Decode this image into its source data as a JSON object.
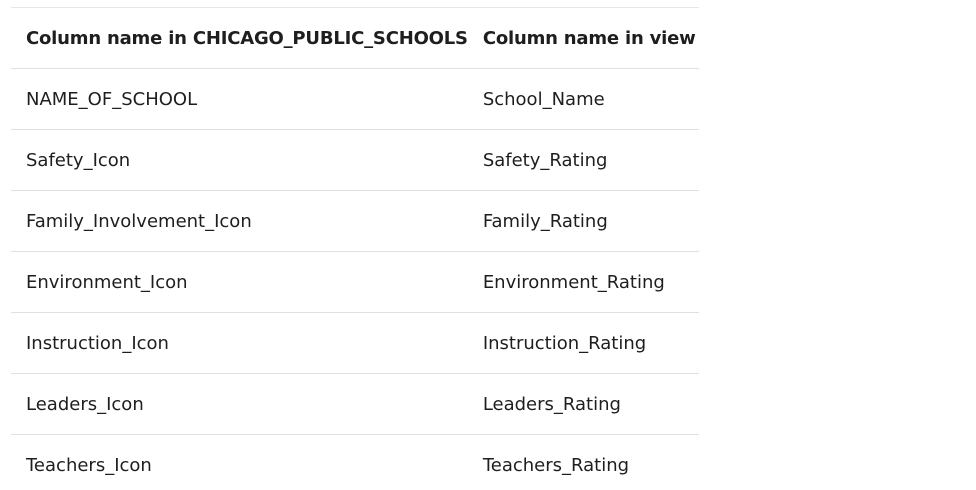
{
  "table": {
    "headers": [
      "Column name in CHICAGO_PUBLIC_SCHOOLS",
      "Column name in view"
    ],
    "rows": [
      [
        "NAME_OF_SCHOOL",
        "School_Name"
      ],
      [
        "Safety_Icon",
        "Safety_Rating"
      ],
      [
        "Family_Involvement_Icon",
        "Family_Rating"
      ],
      [
        "Environment_Icon",
        "Environment_Rating"
      ],
      [
        "Instruction_Icon",
        "Instruction_Rating"
      ],
      [
        "Leaders_Icon",
        "Leaders_Rating"
      ],
      [
        "Teachers_Icon",
        "Teachers_Rating"
      ]
    ]
  }
}
